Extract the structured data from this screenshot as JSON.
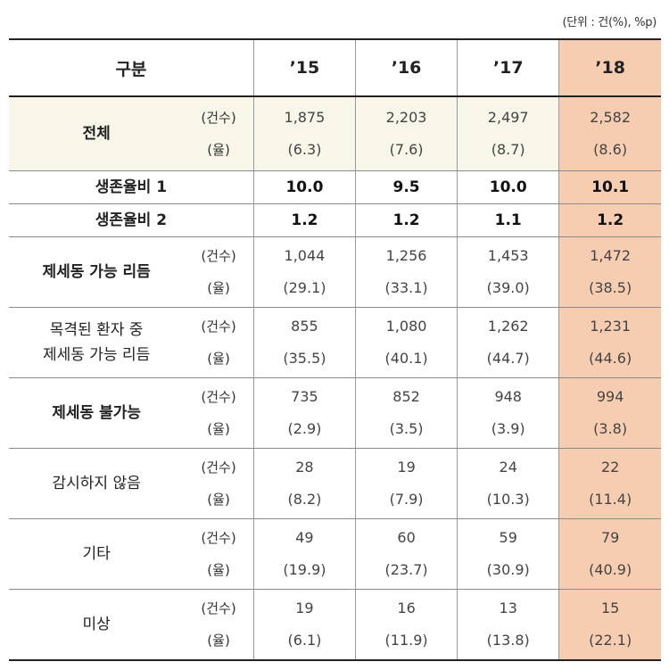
{
  "unit_note": "(단위 : 건(%), %p)",
  "header": {
    "category": "구분",
    "years": [
      "’15",
      "’16",
      "’17",
      "’18"
    ]
  },
  "sub_labels": {
    "count": "(건수)",
    "rate": "(율)"
  },
  "rows": [
    {
      "label_lines": [
        "전체"
      ],
      "bold": true,
      "counts": [
        "1,875",
        "2,203",
        "2,497",
        "2,582"
      ],
      "rates": [
        "(6.3)",
        "(7.6)",
        "(8.7)",
        "(8.6)"
      ]
    },
    {
      "label_lines": [
        "생존율비 1"
      ],
      "bold": true,
      "single": [
        "10.0",
        "9.5",
        "10.0",
        "10.1"
      ]
    },
    {
      "label_lines": [
        "생존율비 2"
      ],
      "bold": true,
      "single": [
        "1.2",
        "1.2",
        "1.1",
        "1.2"
      ]
    },
    {
      "label_lines": [
        "제세동 가능 리듬"
      ],
      "bold": true,
      "counts": [
        "1,044",
        "1,256",
        "1,453",
        "1,472"
      ],
      "rates": [
        "(29.1)",
        "(33.1)",
        "(39.0)",
        "(38.5)"
      ]
    },
    {
      "label_lines": [
        "목격된 환자 중",
        "제세동 가능 리듬"
      ],
      "bold": false,
      "counts": [
        "855",
        "1,080",
        "1,262",
        "1,231"
      ],
      "rates": [
        "(35.5)",
        "(40.1)",
        "(44.7)",
        "(44.6)"
      ]
    },
    {
      "label_lines": [
        "제세동 불가능"
      ],
      "bold": true,
      "counts": [
        "735",
        "852",
        "948",
        "994"
      ],
      "rates": [
        "(2.9)",
        "(3.5)",
        "(3.9)",
        "(3.8)"
      ]
    },
    {
      "label_lines": [
        "감시하지 않음"
      ],
      "bold": false,
      "counts": [
        "28",
        "19",
        "24",
        "22"
      ],
      "rates": [
        "(8.2)",
        "(7.9)",
        "(10.3)",
        "(11.4)"
      ]
    },
    {
      "label_lines": [
        "기타"
      ],
      "bold": false,
      "counts": [
        "49",
        "60",
        "59",
        "79"
      ],
      "rates": [
        "(19.9)",
        "(23.7)",
        "(30.9)",
        "(40.9)"
      ]
    },
    {
      "label_lines": [
        "미상"
      ],
      "bold": false,
      "counts": [
        "19",
        "16",
        "13",
        "15"
      ],
      "rates": [
        "(6.1)",
        "(11.9)",
        "(13.8)",
        "(22.1)"
      ]
    }
  ],
  "colors": {
    "highlight": "#f6cdb0",
    "total_bg": "#f7f6e8"
  }
}
